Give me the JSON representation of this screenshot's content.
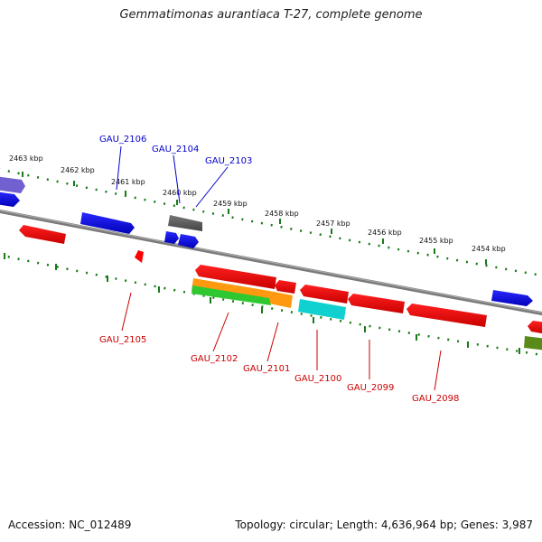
{
  "header": {
    "title": "Gemmatimonas aurantiaca T-27, complete genome"
  },
  "footer": {
    "accession": "Accession: NC_012489",
    "stats": "Topology: circular; Length: 4,636,964 bp; Genes: 3,987"
  },
  "scale_labels": [
    "2463 kbp",
    "2462 kbp",
    "2461 kbp",
    "2460 kbp",
    "2459 kbp",
    "2458 kbp",
    "2457 kbp",
    "2456 kbp",
    "2455 kbp",
    "2454 kbp"
  ],
  "gene_labels": {
    "forward": [
      "GAU_2106",
      "GAU_2104",
      "GAU_2103"
    ],
    "reverse": [
      "GAU_2105",
      "GAU_2102",
      "GAU_2101",
      "GAU_2100",
      "GAU_2099",
      "GAU_2098"
    ]
  },
  "colors": {
    "forward_label": "#0000cc",
    "reverse_label": "#cc0000",
    "backbone": "#808080",
    "tick": "#1a7a1a"
  }
}
